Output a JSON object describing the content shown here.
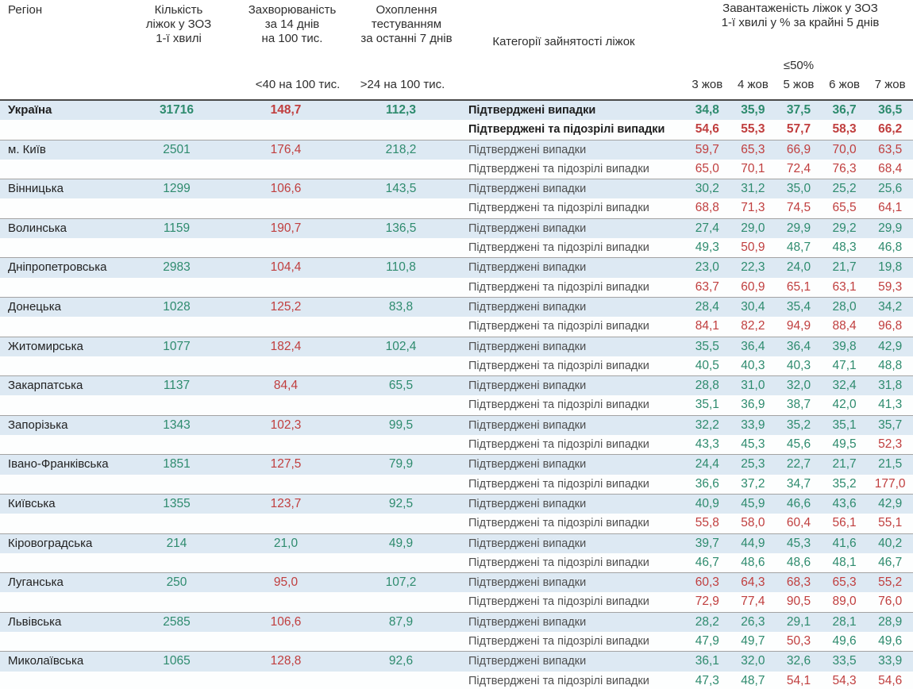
{
  "colors": {
    "green": "#2e8b6e",
    "red": "#c03e3e",
    "row_highlight": "#dde9f3"
  },
  "chart_data": {
    "type": "table",
    "columns": {
      "region": "Регіон",
      "beds": "Кількість\nліжок у ЗОЗ\n1-ї хвилі",
      "incidence": "Захворюваність\nза 14 днів\nна 100 тис.",
      "testing": "Охоплення\nтестуванням\nза останні 7 днів",
      "category": "Категорії зайнятості ліжок",
      "load": "Завантаженість ліжок у ЗОЗ\n1-ї хвилі у % за крайні 5 днів"
    },
    "thresholds": {
      "incidence": "<40 на 100 тис.",
      "testing": ">24 на 100 тис.",
      "load": "≤50%",
      "incidence_rule": 40,
      "testing_rule": 24,
      "load_rule": 50
    },
    "dates": [
      "3 жов",
      "4 жов",
      "5 жов",
      "6 жов",
      "7 жов"
    ],
    "category_labels": {
      "confirmed": "Підтверджені випадки",
      "confirmed_suspected": "Підтверджені та підозрілі випадки"
    },
    "regions": [
      {
        "name": "Україна",
        "bold": true,
        "beds": "31716",
        "incidence": "148,7",
        "testing": "112,3",
        "confirmed": [
          "34,8",
          "35,9",
          "37,5",
          "36,7",
          "36,5"
        ],
        "suspected": [
          "54,6",
          "55,3",
          "57,7",
          "58,3",
          "66,2"
        ]
      },
      {
        "name": "м. Київ",
        "bold": false,
        "beds": "2501",
        "incidence": "176,4",
        "testing": "218,2",
        "confirmed": [
          "59,7",
          "65,3",
          "66,9",
          "70,0",
          "63,5"
        ],
        "suspected": [
          "65,0",
          "70,1",
          "72,4",
          "76,3",
          "68,4"
        ]
      },
      {
        "name": "Вінницька",
        "bold": false,
        "beds": "1299",
        "incidence": "106,6",
        "testing": "143,5",
        "confirmed": [
          "30,2",
          "31,2",
          "35,0",
          "25,2",
          "25,6"
        ],
        "suspected": [
          "68,8",
          "71,3",
          "74,5",
          "65,5",
          "64,1"
        ]
      },
      {
        "name": "Волинська",
        "bold": false,
        "beds": "1159",
        "incidence": "190,7",
        "testing": "136,5",
        "confirmed": [
          "27,4",
          "29,0",
          "29,9",
          "29,2",
          "29,9"
        ],
        "suspected": [
          "49,3",
          "50,9",
          "48,7",
          "48,3",
          "46,8"
        ]
      },
      {
        "name": "Дніпропетровська",
        "bold": false,
        "beds": "2983",
        "incidence": "104,4",
        "testing": "110,8",
        "confirmed": [
          "23,0",
          "22,3",
          "24,0",
          "21,7",
          "19,8"
        ],
        "suspected": [
          "63,7",
          "60,9",
          "65,1",
          "63,1",
          "59,3"
        ]
      },
      {
        "name": "Донецька",
        "bold": false,
        "beds": "1028",
        "incidence": "125,2",
        "testing": "83,8",
        "confirmed": [
          "28,4",
          "30,4",
          "35,4",
          "28,0",
          "34,2"
        ],
        "suspected": [
          "84,1",
          "82,2",
          "94,9",
          "88,4",
          "96,8"
        ]
      },
      {
        "name": "Житомирська",
        "bold": false,
        "beds": "1077",
        "incidence": "182,4",
        "testing": "102,4",
        "confirmed": [
          "35,5",
          "36,4",
          "36,4",
          "39,8",
          "42,9"
        ],
        "suspected": [
          "40,5",
          "40,3",
          "40,3",
          "47,1",
          "48,8"
        ]
      },
      {
        "name": "Закарпатська",
        "bold": false,
        "beds": "1137",
        "incidence": "84,4",
        "testing": "65,5",
        "confirmed": [
          "28,8",
          "31,0",
          "32,0",
          "32,4",
          "31,8"
        ],
        "suspected": [
          "35,1",
          "36,9",
          "38,7",
          "42,0",
          "41,3"
        ]
      },
      {
        "name": "Запорізька",
        "bold": false,
        "beds": "1343",
        "incidence": "102,3",
        "testing": "99,5",
        "confirmed": [
          "32,2",
          "33,9",
          "35,2",
          "35,1",
          "35,7"
        ],
        "suspected": [
          "43,3",
          "45,3",
          "45,6",
          "49,5",
          "52,3"
        ]
      },
      {
        "name": "Івано-Франківська",
        "bold": false,
        "beds": "1851",
        "incidence": "127,5",
        "testing": "79,9",
        "confirmed": [
          "24,4",
          "25,3",
          "22,7",
          "21,7",
          "21,5"
        ],
        "suspected": [
          "36,6",
          "37,2",
          "34,7",
          "35,2",
          "177,0"
        ]
      },
      {
        "name": "Київська",
        "bold": false,
        "beds": "1355",
        "incidence": "123,7",
        "testing": "92,5",
        "confirmed": [
          "40,9",
          "45,9",
          "46,6",
          "43,6",
          "42,9"
        ],
        "suspected": [
          "55,8",
          "58,0",
          "60,4",
          "56,1",
          "55,1"
        ]
      },
      {
        "name": "Кіровоградська",
        "bold": false,
        "beds": "214",
        "incidence": "21,0",
        "testing": "49,9",
        "confirmed": [
          "39,7",
          "44,9",
          "45,3",
          "41,6",
          "40,2"
        ],
        "suspected": [
          "46,7",
          "48,6",
          "48,6",
          "48,1",
          "46,7"
        ]
      },
      {
        "name": "Луганська",
        "bold": false,
        "beds": "250",
        "incidence": "95,0",
        "testing": "107,2",
        "confirmed": [
          "60,3",
          "64,3",
          "68,3",
          "65,3",
          "55,2"
        ],
        "suspected": [
          "72,9",
          "77,4",
          "90,5",
          "89,0",
          "76,0"
        ]
      },
      {
        "name": "Львівська",
        "bold": false,
        "beds": "2585",
        "incidence": "106,6",
        "testing": "87,9",
        "confirmed": [
          "28,2",
          "26,3",
          "29,1",
          "28,1",
          "28,9"
        ],
        "suspected": [
          "47,9",
          "49,7",
          "50,3",
          "49,6",
          "49,6"
        ]
      },
      {
        "name": "Миколаївська",
        "bold": false,
        "beds": "1065",
        "incidence": "128,8",
        "testing": "92,6",
        "confirmed": [
          "36,1",
          "32,0",
          "32,6",
          "33,5",
          "33,9"
        ],
        "suspected": [
          "47,3",
          "48,7",
          "54,1",
          "54,3",
          "54,6"
        ]
      }
    ]
  }
}
